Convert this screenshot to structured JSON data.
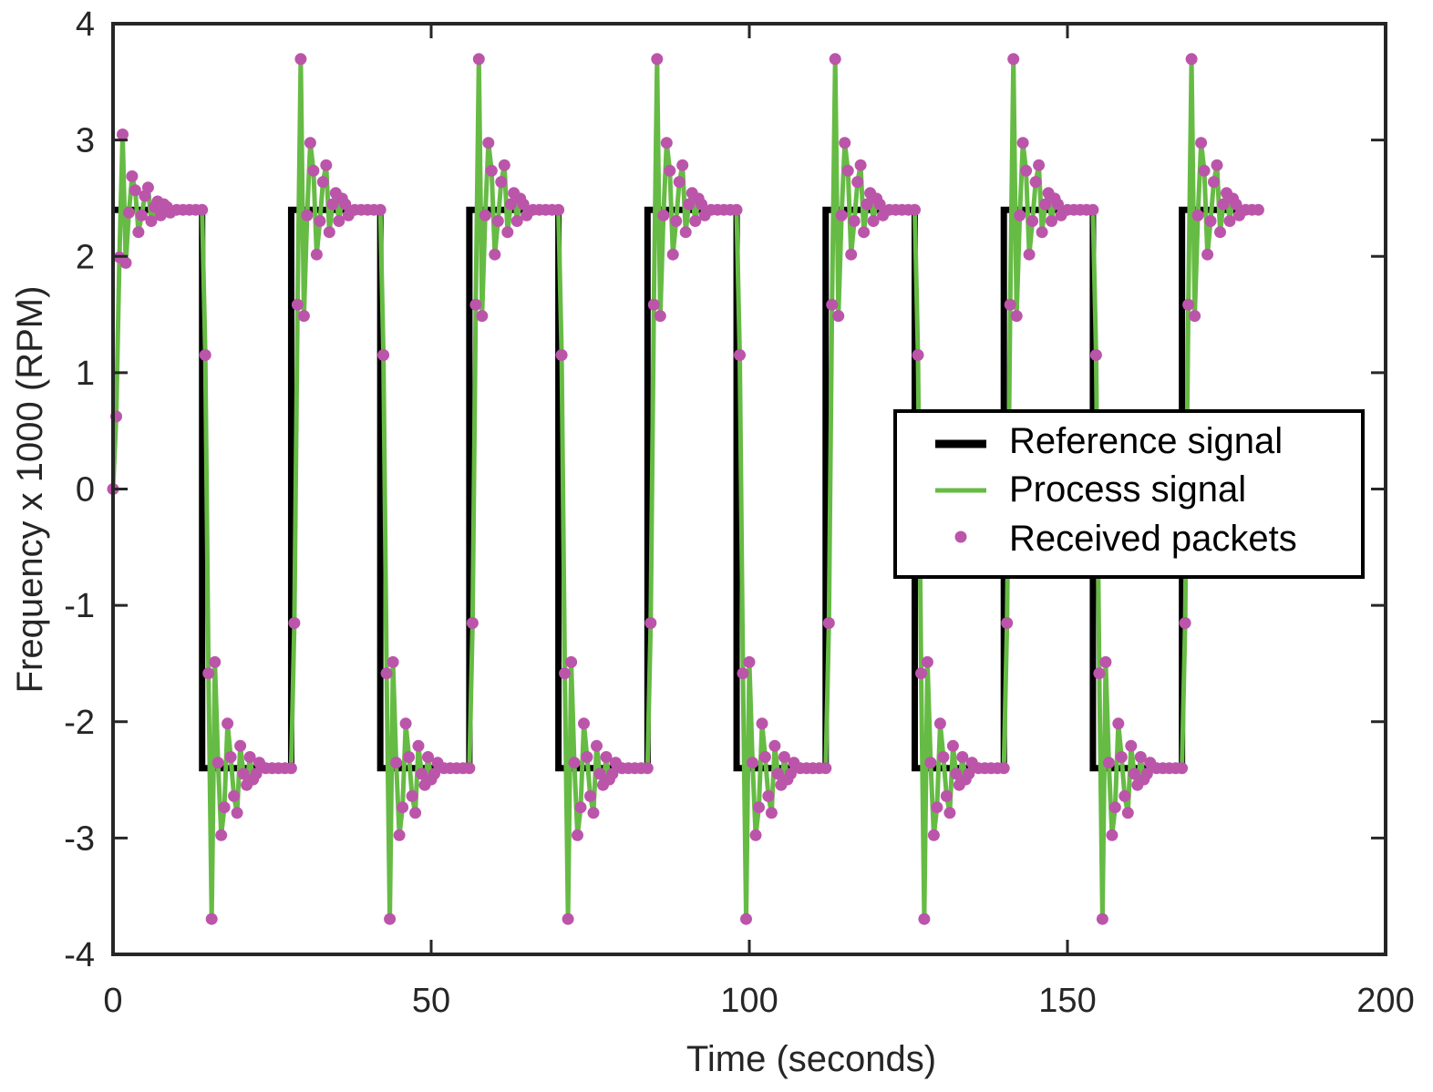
{
  "chart_data": {
    "type": "line",
    "title": "",
    "xlabel": "Time (seconds)",
    "ylabel": "Frequency x 1000 (RPM)",
    "xlim": [
      0,
      200
    ],
    "ylim": [
      -4,
      4
    ],
    "xticks": [
      0,
      50,
      100,
      150,
      200
    ],
    "xtick_labels": [
      "0",
      "50",
      "100",
      "150",
      "200"
    ],
    "yticks": [
      -4,
      -3,
      -2,
      -1,
      0,
      1,
      2,
      3,
      4
    ],
    "ytick_labels": [
      "-4",
      "-3",
      "-2",
      "-1",
      "0",
      "1",
      "2",
      "3",
      "4"
    ],
    "grid": false,
    "legend_position": "center-right",
    "reference": {
      "name": "Reference signal",
      "color": "#000000",
      "amplitude": 2.4,
      "half_period": 14,
      "switch_times": [
        0,
        14,
        28,
        42,
        56,
        70,
        84,
        98,
        112,
        126,
        140,
        154,
        168
      ],
      "end_time": 180.5
    },
    "process": {
      "name": "Process signal",
      "color": "#66bb44",
      "step_response_offsets": [
        0,
        0.5,
        1,
        1.5,
        2,
        2.5,
        3,
        3.5,
        4,
        4.5,
        5,
        5.5,
        6,
        6.5,
        7,
        7.5,
        8,
        8.5,
        9,
        10,
        11,
        12,
        13,
        14
      ],
      "step_response_fractions": [
        0,
        0.26,
        0.83,
        1.27,
        0.81,
        0.99,
        1.12,
        1.07,
        0.92,
        0.98,
        1.05,
        1.08,
        0.96,
        1.01,
        1.03,
        0.98,
        1.02,
        1.01,
        0.99,
        1.0,
        1.0,
        1.0,
        1.0,
        1.0
      ]
    },
    "packets": {
      "name": "Received packets",
      "color": "#bb55aa",
      "note": "sampled points of the process signal"
    },
    "legend": [
      "Reference signal",
      "Process signal",
      "Received packets"
    ]
  }
}
